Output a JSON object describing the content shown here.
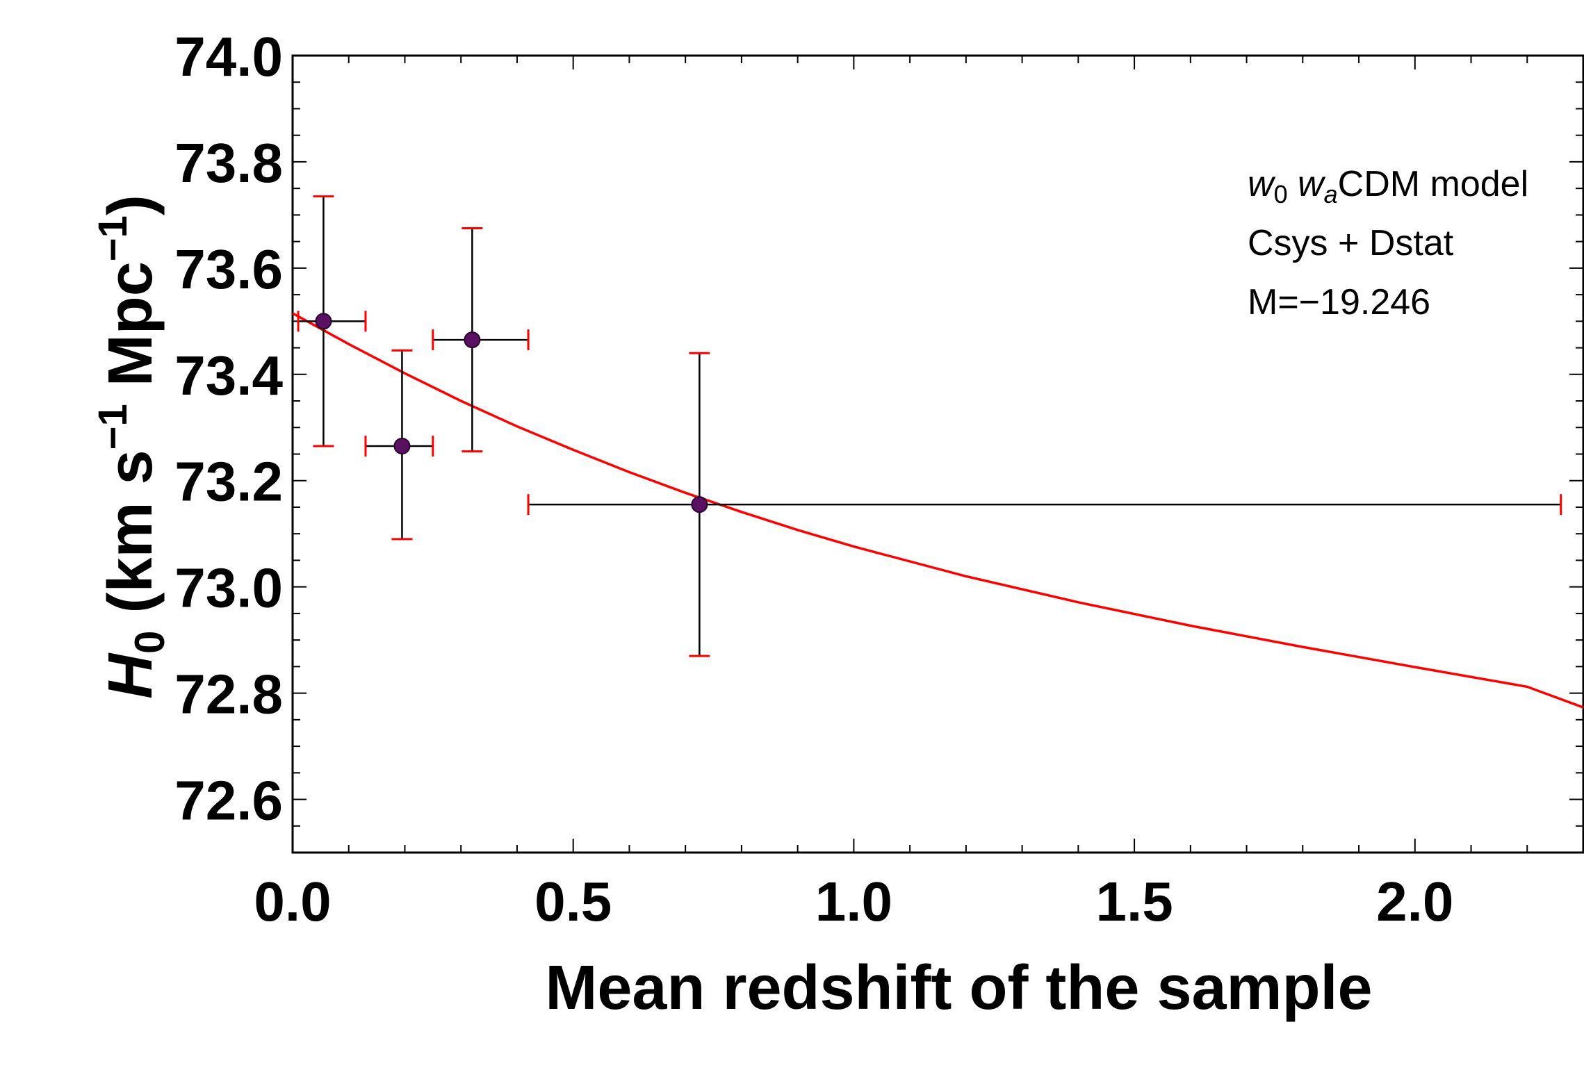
{
  "chart_data": {
    "type": "scatter",
    "xlabel": "Mean redshift of the sample",
    "ylabel": {
      "symbol": "H",
      "subscript": "0",
      "units": "(km s",
      "exp1": "−1",
      "units2": " Mpc",
      "exp2": "−1",
      "close": ")"
    },
    "xlim": [
      0.0,
      2.3
    ],
    "ylim": [
      72.5,
      74.0
    ],
    "x_ticks": [
      0.0,
      0.5,
      1.0,
      1.5,
      2.0
    ],
    "x_tick_labels": [
      "0.0",
      "0.5",
      "1.0",
      "1.5",
      "2.0"
    ],
    "y_ticks": [
      72.6,
      72.8,
      73.0,
      73.2,
      73.4,
      73.6,
      73.8,
      74.0
    ],
    "y_tick_labels": [
      "72.6",
      "72.8",
      "73.0",
      "73.2",
      "73.4",
      "73.6",
      "73.8",
      "74.0"
    ],
    "annotation": {
      "model_w0": "w",
      "model_w0_sub": "0",
      "model_wa": "w",
      "model_wa_sub": "a",
      "model_rest": "CDM model",
      "line2": "Csys + Dstat",
      "line3": "M=−19.246"
    },
    "points": [
      {
        "x": 0.055,
        "y": 73.5,
        "xmin": 0.01,
        "xmax": 0.13,
        "ymin": 73.265,
        "ymax": 73.735
      },
      {
        "x": 0.195,
        "y": 73.265,
        "xmin": 0.13,
        "xmax": 0.25,
        "ymin": 73.09,
        "ymax": 73.445
      },
      {
        "x": 0.32,
        "y": 73.465,
        "xmin": 0.25,
        "xmax": 0.42,
        "ymin": 73.255,
        "ymax": 73.675
      },
      {
        "x": 0.725,
        "y": 73.155,
        "xmin": 0.42,
        "xmax": 2.26,
        "ymin": 72.87,
        "ymax": 73.44
      }
    ],
    "fit_curve": {
      "x": [
        0.0,
        0.1,
        0.2,
        0.3,
        0.4,
        0.5,
        0.6,
        0.7,
        0.8,
        0.9,
        1.0,
        1.2,
        1.4,
        1.6,
        1.8,
        2.0,
        2.2,
        2.3
      ],
      "y": [
        73.515,
        73.457,
        73.402,
        73.35,
        73.302,
        73.258,
        73.216,
        73.177,
        73.141,
        73.107,
        73.076,
        73.02,
        72.971,
        72.927,
        72.887,
        72.849,
        72.812,
        72.773
      ]
    },
    "colors": {
      "fit": "#ff0000",
      "errorbar": "#000000",
      "cap": "#ff0000",
      "point": "#5a1060",
      "axes": "#000000"
    },
    "grid": false
  }
}
